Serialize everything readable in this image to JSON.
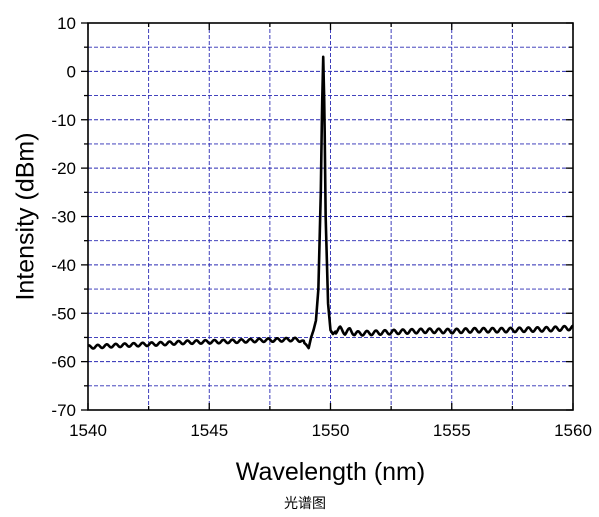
{
  "chart_data": {
    "type": "line",
    "title": "",
    "caption": "光谱图",
    "xlabel": "Wavelength (nm)",
    "ylabel": "Intensity (dBm)",
    "xlim": [
      1540,
      1560
    ],
    "ylim": [
      -70,
      10
    ],
    "xticks": [
      1540,
      1545,
      1550,
      1555,
      1560
    ],
    "yticks": [
      10,
      0,
      -10,
      -20,
      -30,
      -40,
      -50,
      -60,
      -70
    ],
    "x_minor_step": 2.5,
    "y_minor_step": 5,
    "grid": true,
    "colors": {
      "line": "#000000",
      "grid": "#2a2ab4",
      "axes": "#000000"
    },
    "series": [
      {
        "x": [
          1540,
          1541,
          1542,
          1543,
          1544,
          1545,
          1546,
          1547,
          1548,
          1548.5,
          1548.8,
          1549.0,
          1549.1,
          1549.2,
          1549.3,
          1549.4,
          1549.5,
          1549.6,
          1549.65,
          1549.7,
          1549.75,
          1549.8,
          1549.9,
          1550.0,
          1550.1,
          1550.2,
          1550.4,
          1550.6,
          1550.8,
          1551,
          1552,
          1553,
          1554,
          1555,
          1556,
          1557,
          1558,
          1559,
          1560
        ],
        "y": [
          -57.0,
          -56.7,
          -56.5,
          -56.3,
          -56.0,
          -55.9,
          -55.8,
          -55.6,
          -55.5,
          -55.4,
          -55.6,
          -56.5,
          -57.2,
          -55.0,
          -53.5,
          -51.5,
          -45.0,
          -25.0,
          -8.0,
          3.0,
          -8.0,
          -30.0,
          -48.0,
          -53.5,
          -54.3,
          -53.8,
          -53.2,
          -54.0,
          -53.5,
          -54.2,
          -54.0,
          -53.8,
          -53.6,
          -53.7,
          -53.5,
          -53.5,
          -53.4,
          -53.3,
          -53.0
        ]
      }
    ]
  }
}
